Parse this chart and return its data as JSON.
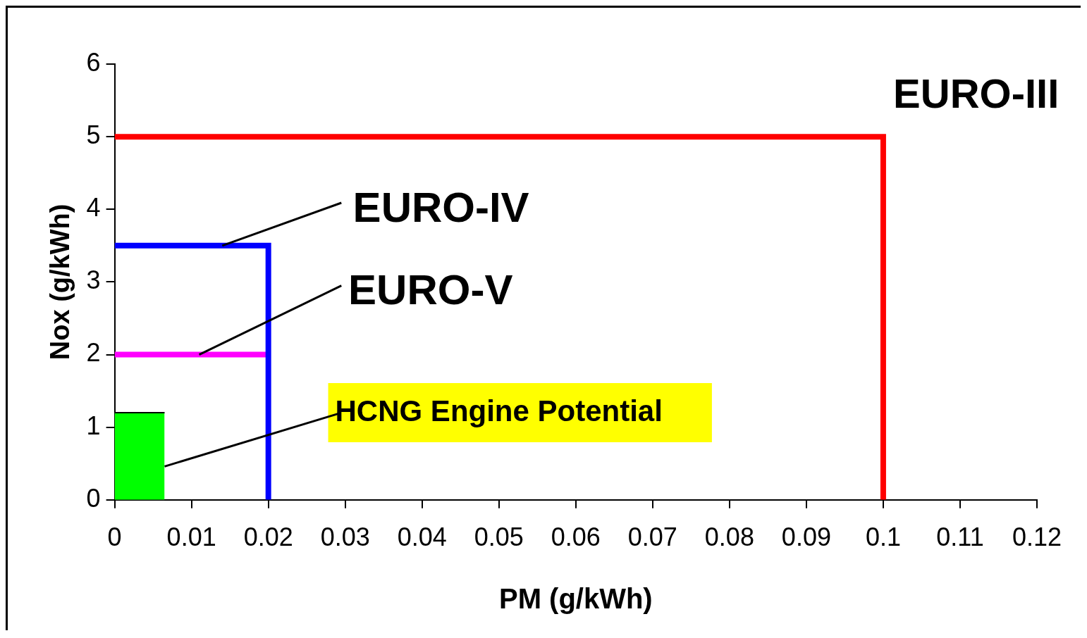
{
  "chart_data": {
    "type": "line",
    "xlabel": "PM (g/kWh)",
    "ylabel": "Nox (g/kWh)",
    "xlim": [
      0,
      0.12
    ],
    "xticks": [
      0,
      0.01,
      0.02,
      0.03,
      0.04,
      0.05,
      0.06,
      0.07,
      0.08,
      0.09,
      0.1,
      0.11,
      0.12
    ],
    "ylim": [
      0,
      6
    ],
    "yticks": [
      0,
      1,
      2,
      3,
      4,
      5,
      6
    ],
    "grid": false,
    "legend": false,
    "marker": "none",
    "line_style": "solid",
    "series": [
      {
        "color": "#ff0000",
        "x": [
          0,
          0.1,
          0.1
        ],
        "values": [
          5,
          5,
          0
        ]
      },
      {
        "color": "#0000ff",
        "x": [
          0,
          0.02,
          0.02
        ],
        "values": [
          3.5,
          3.5,
          0
        ]
      },
      {
        "color": "#ff00ff",
        "x": [
          0,
          0.02
        ],
        "values": [
          2,
          2
        ]
      },
      {
        "type": "area",
        "color": "#00ff00",
        "x": [
          0,
          0.0065
        ],
        "values": [
          1.2,
          1.2
        ]
      }
    ],
    "annotations": [
      "EURO-III",
      {
        "text": "EURO-IV",
        "x": 0.014,
        "y": 3.5
      },
      {
        "text": "EURO-V",
        "x": 0.011,
        "y": 2
      },
      {
        "text": "HCNG Engine Potential",
        "x": 0.0065,
        "y": 0.46
      }
    ]
  }
}
